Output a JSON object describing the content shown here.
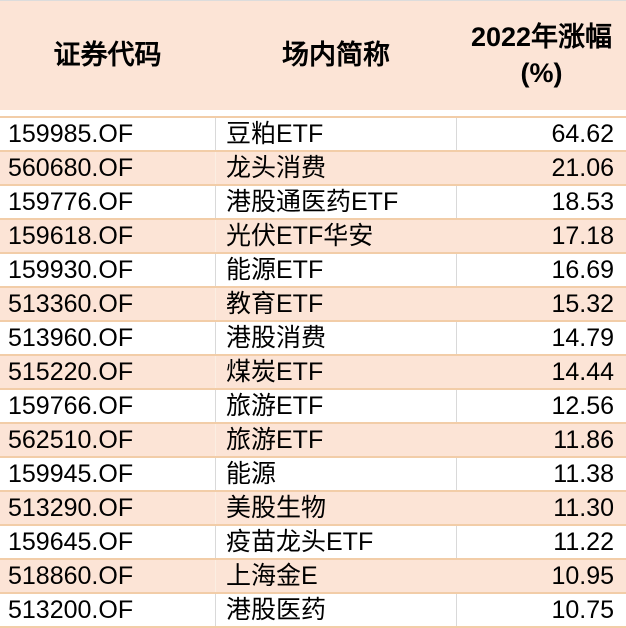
{
  "table": {
    "columns": [
      {
        "label": "证券代码"
      },
      {
        "label": "场内简称"
      },
      {
        "label": "2022年涨幅",
        "label_line2": "(%)"
      }
    ],
    "rows": [
      {
        "code": "159985.OF",
        "name": "豆粕ETF",
        "gain": "64.62"
      },
      {
        "code": "560680.OF",
        "name": "龙头消费",
        "gain": "21.06"
      },
      {
        "code": "159776.OF",
        "name": "港股通医药ETF",
        "gain": "18.53"
      },
      {
        "code": "159618.OF",
        "name": "光伏ETF华安",
        "gain": "17.18"
      },
      {
        "code": "159930.OF",
        "name": "能源ETF",
        "gain": "16.69"
      },
      {
        "code": "513360.OF",
        "name": "教育ETF",
        "gain": "15.32"
      },
      {
        "code": "513960.OF",
        "name": "港股消费",
        "gain": "14.79"
      },
      {
        "code": "515220.OF",
        "name": "煤炭ETF",
        "gain": "14.44"
      },
      {
        "code": "159766.OF",
        "name": "旅游ETF",
        "gain": "12.56"
      },
      {
        "code": "562510.OF",
        "name": "旅游ETF",
        "gain": "11.86"
      },
      {
        "code": "159945.OF",
        "name": "能源",
        "gain": "11.38"
      },
      {
        "code": "513290.OF",
        "name": "美股生物",
        "gain": "11.30"
      },
      {
        "code": "159645.OF",
        "name": "疫苗龙头ETF",
        "gain": "11.22"
      },
      {
        "code": "518860.OF",
        "name": "上海金E",
        "gain": "10.95"
      },
      {
        "code": "513200.OF",
        "name": "港股医药",
        "gain": "10.75"
      }
    ]
  },
  "colors": {
    "row_peach": "#fce4d6",
    "header_peach": "#fce4d6",
    "grid_line_tan": "#f2cda8",
    "grid_line_gray": "#d9d9d9",
    "text": "#000000"
  }
}
